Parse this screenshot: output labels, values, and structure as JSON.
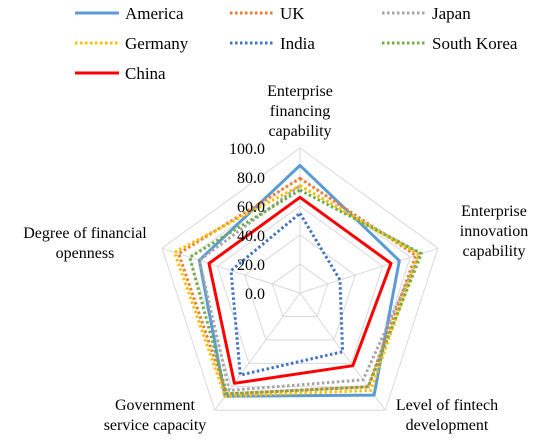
{
  "chart_data": {
    "type": "radar",
    "title": "",
    "axes": [
      [
        "Enterprise",
        "financing",
        "capability"
      ],
      [
        "Enterprise",
        "innovation",
        "capability"
      ],
      [
        "Level of fintech",
        "development"
      ],
      [
        "Government",
        "service capacity"
      ],
      [
        "Degree of financial",
        "openness"
      ]
    ],
    "rlim": [
      0,
      100
    ],
    "ticks": [
      "0.0",
      "20.0",
      "40.0",
      "60.0",
      "80.0",
      "100.0"
    ],
    "tick_values": [
      0,
      20,
      40,
      60,
      80,
      100
    ],
    "grid": true,
    "legend_position": "top",
    "series": [
      {
        "name": "America",
        "color": "#5B9BD5",
        "style": "solid",
        "values": [
          88,
          72,
          87,
          88,
          73
        ]
      },
      {
        "name": "UK",
        "color": "#ED7D31",
        "style": "dotted",
        "values": [
          79,
          84,
          80,
          86,
          88
        ]
      },
      {
        "name": "Japan",
        "color": "#A5A5A5",
        "style": "dotted",
        "values": [
          74,
          87,
          74,
          83,
          73
        ]
      },
      {
        "name": "Germany",
        "color": "#FFC000",
        "style": "dotted",
        "values": [
          74,
          86,
          83,
          88,
          91
        ]
      },
      {
        "name": "India",
        "color": "#4472C4",
        "style": "dotted",
        "values": [
          55,
          29,
          50,
          70,
          50
        ]
      },
      {
        "name": "South Korea",
        "color": "#70AD47",
        "style": "dotted",
        "values": [
          71,
          88,
          80,
          86,
          80
        ]
      },
      {
        "name": "China",
        "color": "#FF0000",
        "style": "solid",
        "values": [
          66,
          66,
          62,
          77,
          66
        ]
      }
    ]
  }
}
